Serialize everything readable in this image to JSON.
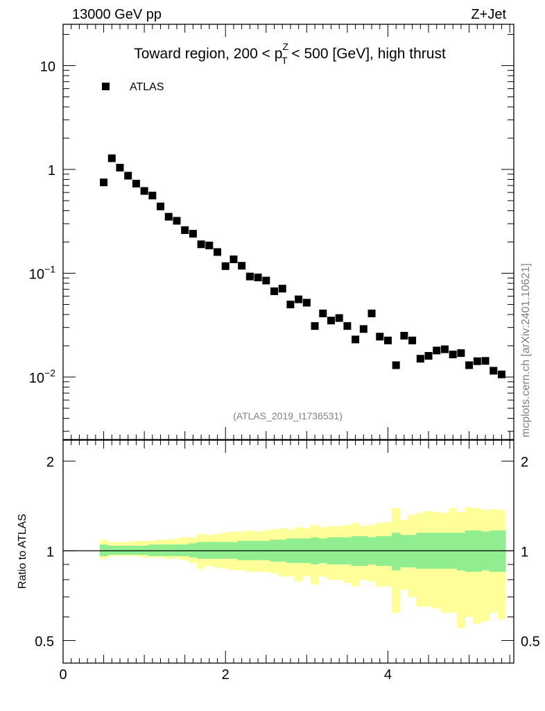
{
  "header": {
    "energy_label": "13000 GeV pp",
    "process_label": "Z+Jet"
  },
  "side_label": "mcplots.cern.ch [arXiv:2401.10621]",
  "analysis_id": "(ATLAS_2019_I1736531)",
  "colors": {
    "marker": "#000000",
    "band_inner": "#90ee90",
    "band_outer": "#ffff99",
    "ref_line": "#000000"
  },
  "chart_data": [
    {
      "type": "scatter",
      "title": {
        "pre": "Toward region, 200 < p",
        "sup": "Z",
        "sub": "T",
        "post": " < 500 [GeV], high thrust"
      },
      "legend": [
        {
          "label": "ATLAS",
          "marker": "square"
        }
      ],
      "legend_position": "top-left",
      "yscale": "log",
      "xlim": [
        0,
        5.55
      ],
      "ylim": [
        0.0025,
        25
      ],
      "y_ticks": [
        {
          "value": 0.01,
          "base": "10",
          "exp": "−2"
        },
        {
          "value": 0.1,
          "base": "10",
          "exp": "−1"
        },
        {
          "value": 1,
          "base": "1",
          "exp": ""
        },
        {
          "value": 10,
          "base": "10",
          "exp": ""
        }
      ],
      "x": [
        0.5,
        0.6,
        0.7,
        0.8,
        0.9,
        1.0,
        1.1,
        1.2,
        1.3,
        1.4,
        1.5,
        1.6,
        1.7,
        1.8,
        1.9,
        2.0,
        2.1,
        2.2,
        2.3,
        2.4,
        2.5,
        2.6,
        2.7,
        2.8,
        2.9,
        3.0,
        3.1,
        3.2,
        3.3,
        3.4,
        3.5,
        3.6,
        3.7,
        3.8,
        3.9,
        4.0,
        4.1,
        4.2,
        4.3,
        4.4,
        4.5,
        4.6,
        4.7,
        4.8,
        4.9,
        5.0,
        5.1,
        5.2,
        5.3,
        5.4
      ],
      "series": [
        {
          "name": "ATLAS",
          "values": [
            0.75,
            1.28,
            1.04,
            0.87,
            0.73,
            0.62,
            0.56,
            0.44,
            0.35,
            0.32,
            0.26,
            0.24,
            0.19,
            0.185,
            0.16,
            0.117,
            0.136,
            0.118,
            0.093,
            0.091,
            0.085,
            0.067,
            0.071,
            0.05,
            0.056,
            0.052,
            0.031,
            0.041,
            0.035,
            0.037,
            0.031,
            0.023,
            0.029,
            0.041,
            0.0245,
            0.0225,
            0.013,
            0.025,
            0.0225,
            0.015,
            0.016,
            0.018,
            0.0185,
            0.0165,
            0.017,
            0.013,
            0.0142,
            0.0143,
            0.0115,
            0.0106
          ]
        }
      ]
    },
    {
      "type": "area",
      "ylabel": "Ratio to ATLAS",
      "xlabel": "",
      "xlim": [
        0,
        5.55
      ],
      "ylim": [
        0.42,
        2.35
      ],
      "y_ticks": [
        0.5,
        1,
        2
      ],
      "y_tick_labels": [
        "0.5",
        "1",
        "2"
      ],
      "x_ticks": [
        0,
        2,
        4
      ],
      "x_tick_labels": [
        "0",
        "2",
        "4"
      ],
      "reference_line": 1,
      "bins": [
        0.45,
        0.55,
        0.65,
        0.75,
        0.85,
        0.95,
        1.05,
        1.15,
        1.25,
        1.35,
        1.45,
        1.55,
        1.65,
        1.75,
        1.85,
        1.95,
        2.05,
        2.15,
        2.25,
        2.35,
        2.45,
        2.55,
        2.65,
        2.75,
        2.85,
        2.95,
        3.05,
        3.15,
        3.25,
        3.35,
        3.45,
        3.55,
        3.65,
        3.75,
        3.85,
        3.95,
        4.05,
        4.15,
        4.25,
        4.35,
        4.45,
        4.55,
        4.65,
        4.75,
        4.85,
        4.95,
        5.05,
        5.15,
        5.25,
        5.35,
        5.45
      ],
      "series": [
        {
          "name": "inner band (stat)",
          "upper": [
            1.05,
            1.04,
            1.04,
            1.04,
            1.04,
            1.04,
            1.05,
            1.05,
            1.05,
            1.05,
            1.05,
            1.06,
            1.07,
            1.07,
            1.07,
            1.07,
            1.07,
            1.08,
            1.08,
            1.08,
            1.08,
            1.09,
            1.09,
            1.1,
            1.1,
            1.1,
            1.11,
            1.1,
            1.11,
            1.11,
            1.11,
            1.12,
            1.12,
            1.11,
            1.12,
            1.12,
            1.15,
            1.13,
            1.13,
            1.15,
            1.15,
            1.15,
            1.15,
            1.15,
            1.15,
            1.17,
            1.17,
            1.16,
            1.17,
            1.17
          ],
          "lower": [
            0.96,
            0.97,
            0.97,
            0.97,
            0.97,
            0.97,
            0.96,
            0.96,
            0.96,
            0.96,
            0.96,
            0.95,
            0.94,
            0.94,
            0.94,
            0.94,
            0.94,
            0.93,
            0.93,
            0.93,
            0.93,
            0.92,
            0.92,
            0.91,
            0.91,
            0.91,
            0.9,
            0.91,
            0.9,
            0.9,
            0.9,
            0.89,
            0.89,
            0.9,
            0.89,
            0.89,
            0.86,
            0.88,
            0.88,
            0.87,
            0.87,
            0.87,
            0.87,
            0.87,
            0.86,
            0.85,
            0.85,
            0.86,
            0.85,
            0.85
          ]
        },
        {
          "name": "outer band (total)",
          "upper": [
            1.09,
            1.07,
            1.07,
            1.07,
            1.08,
            1.08,
            1.08,
            1.09,
            1.09,
            1.1,
            1.11,
            1.11,
            1.14,
            1.13,
            1.14,
            1.15,
            1.16,
            1.16,
            1.17,
            1.16,
            1.17,
            1.18,
            1.19,
            1.18,
            1.2,
            1.19,
            1.22,
            1.2,
            1.21,
            1.21,
            1.22,
            1.24,
            1.21,
            1.22,
            1.24,
            1.25,
            1.39,
            1.27,
            1.32,
            1.34,
            1.36,
            1.35,
            1.34,
            1.39,
            1.35,
            1.4,
            1.39,
            1.37,
            1.38,
            1.37
          ],
          "lower": [
            0.94,
            0.96,
            0.96,
            0.96,
            0.96,
            0.95,
            0.95,
            0.95,
            0.94,
            0.94,
            0.93,
            0.91,
            0.87,
            0.89,
            0.88,
            0.87,
            0.86,
            0.86,
            0.85,
            0.85,
            0.85,
            0.84,
            0.82,
            0.82,
            0.79,
            0.82,
            0.77,
            0.82,
            0.8,
            0.8,
            0.78,
            0.76,
            0.8,
            0.79,
            0.76,
            0.76,
            0.62,
            0.74,
            0.7,
            0.65,
            0.65,
            0.64,
            0.62,
            0.62,
            0.55,
            0.6,
            0.57,
            0.58,
            0.62,
            0.59
          ]
        }
      ]
    }
  ]
}
